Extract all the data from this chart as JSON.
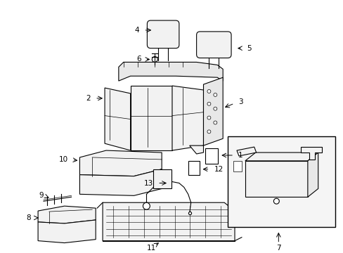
{
  "background_color": "#ffffff",
  "line_color": "#000000",
  "fig_width": 4.89,
  "fig_height": 3.6,
  "dpi": 100,
  "lw": 0.8,
  "lw_thin": 0.5,
  "gray_fill": "#e8e8e8",
  "light_fill": "#f2f2f2",
  "white_fill": "#ffffff",
  "inset_fill": "#ececec"
}
